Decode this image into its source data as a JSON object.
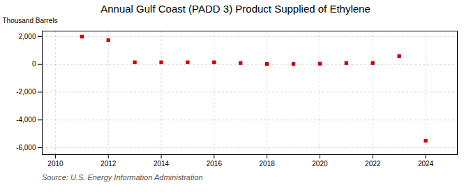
{
  "chart_data": {
    "type": "scatter",
    "title": "Annual Gulf Coast (PADD 3) Product Supplied of Ethylene",
    "ylabel": "Thousand Barrels",
    "source": "Source: U.S. Energy Information Administration",
    "x": [
      2011,
      2012,
      2013,
      2014,
      2015,
      2016,
      2017,
      2018,
      2019,
      2020,
      2021,
      2022,
      2023,
      2024
    ],
    "values": [
      2000,
      1750,
      150,
      150,
      150,
      150,
      100,
      30,
      30,
      50,
      100,
      100,
      600,
      -5500
    ],
    "color": "#cc0000",
    "marker": "square",
    "xlim": [
      2009.5,
      2025.2
    ],
    "ylim": [
      -6500,
      2400
    ],
    "xticks": [
      2010,
      2012,
      2014,
      2016,
      2018,
      2020,
      2022,
      2024
    ],
    "yticks": [
      {
        "value": 2000,
        "label": "2,000"
      },
      0,
      {
        "value": -2000,
        "label": "-2,000"
      },
      {
        "value": -4000,
        "label": "-4,000"
      },
      {
        "value": -6000,
        "label": "-6,000"
      }
    ],
    "grid": true
  }
}
